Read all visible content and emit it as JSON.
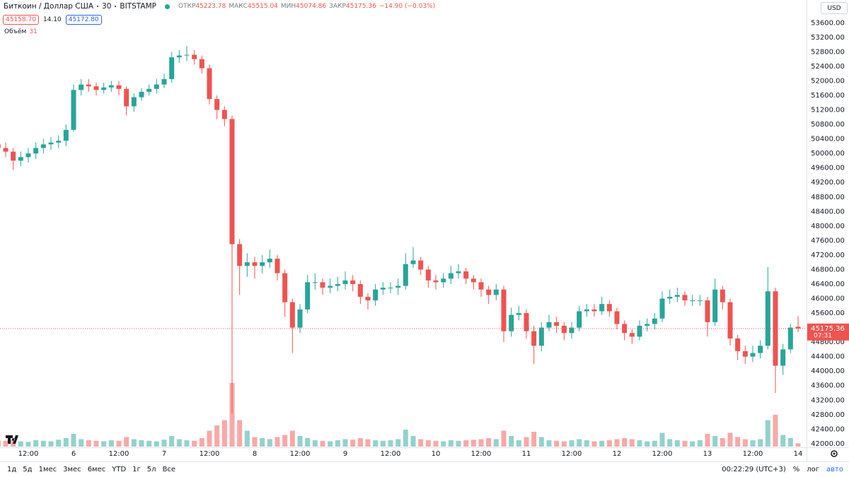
{
  "header": {
    "symbol": "Биткоин / Доллар США",
    "interval": "30",
    "exchange": "BITSTAMP",
    "open_label": "ОТКР",
    "high_label": "МАКС",
    "low_label": "МИН",
    "close_label": "ЗАКР",
    "change": "−14.90 (−0.03%)",
    "bid": "45158.70",
    "spread": "14.10",
    "ask": "45172.80",
    "volume_label": "Объём",
    "currency": "USD",
    "countdown": "07:31"
  },
  "toolbar": {
    "ranges": [
      "1д",
      "5д",
      "1мес",
      "3мес",
      "6мес",
      "YTD",
      "1г",
      "5л",
      "Все"
    ],
    "clock": "00:22:29 (UTC+3)",
    "percent": "%",
    "log": "лог",
    "auto": "авто"
  },
  "chart_data": {
    "type": "candlestick",
    "up_color": "#26a69a",
    "down_color": "#ef5350",
    "grid": false,
    "categories": [
      null,
      null,
      null,
      null,
      "12:00",
      null,
      null,
      null,
      null,
      null,
      "6",
      null,
      null,
      null,
      null,
      null,
      "12:00",
      null,
      null,
      null,
      null,
      null,
      "7",
      null,
      null,
      null,
      null,
      null,
      "12:00",
      null,
      null,
      null,
      null,
      null,
      "8",
      null,
      null,
      null,
      null,
      null,
      "12:00",
      null,
      null,
      null,
      null,
      null,
      "9",
      null,
      null,
      null,
      null,
      null,
      "12:00",
      null,
      null,
      null,
      null,
      null,
      "10",
      null,
      null,
      null,
      null,
      null,
      "12:00",
      null,
      null,
      null,
      null,
      null,
      "11",
      null,
      null,
      null,
      null,
      null,
      "12:00",
      null,
      null,
      null,
      null,
      null,
      "12",
      null,
      null,
      null,
      null,
      null,
      "12:00",
      null,
      null,
      null,
      null,
      null,
      "13",
      null,
      null,
      null,
      null,
      null,
      "12:00",
      null,
      null,
      null,
      null,
      null,
      "14"
    ],
    "open": [
      50250,
      50150,
      50050,
      49800,
      49900,
      50000,
      50150,
      50250,
      50300,
      50350,
      50650,
      51750,
      51900,
      51850,
      51750,
      51820,
      51880,
      51780,
      51300,
      51550,
      51700,
      51780,
      51900,
      52050,
      52650,
      52700,
      52720,
      52600,
      52350,
      51500,
      51200,
      50950,
      47500,
      46900,
      47000,
      46900,
      47000,
      47100,
      46700,
      45900,
      45200,
      45700,
      46450,
      46450,
      46300,
      46350,
      46400,
      46500,
      46400,
      46050,
      45950,
      46250,
      46300,
      46300,
      46350,
      46950,
      47050,
      46800,
      46500,
      46450,
      46550,
      46700,
      46750,
      46550,
      46450,
      46250,
      46100,
      46250,
      45100,
      45550,
      45600,
      45100,
      44700,
      45200,
      45350,
      45250,
      45050,
      45200,
      45650,
      45700,
      45650,
      45850,
      45650,
      45300,
      45050,
      44950,
      45250,
      45300,
      45450,
      46000,
      46050,
      46100,
      45950,
      45950,
      45950,
      45350,
      46250,
      45900,
      44900,
      44550,
      44400,
      44500,
      44700,
      46200,
      44150,
      44600,
      45223.78
    ],
    "high": [
      50400,
      50300,
      50150,
      50050,
      50150,
      50300,
      50400,
      50450,
      50500,
      50800,
      51900,
      52050,
      52050,
      51950,
      51950,
      52000,
      52000,
      51850,
      51650,
      51800,
      51900,
      52050,
      52200,
      52800,
      52850,
      52960,
      52850,
      52700,
      52450,
      51600,
      51300,
      51050,
      47640,
      47250,
      47150,
      47200,
      47350,
      47200,
      46800,
      46000,
      45850,
      46650,
      46700,
      46550,
      46550,
      46600,
      46750,
      46650,
      46500,
      46150,
      46400,
      46450,
      46450,
      46550,
      47250,
      47420,
      47150,
      46900,
      46650,
      46700,
      46900,
      46950,
      46850,
      46650,
      46550,
      46350,
      46400,
      46350,
      45750,
      45800,
      45700,
      45250,
      45350,
      45550,
      45500,
      45350,
      45350,
      45800,
      45850,
      45850,
      46050,
      45950,
      45750,
      45400,
      45150,
      45400,
      45450,
      45600,
      46200,
      46250,
      46300,
      46200,
      46100,
      46100,
      46050,
      46550,
      46350,
      46000,
      45000,
      44700,
      44700,
      44850,
      46870,
      46300,
      44750,
      45300,
      45515.04
    ],
    "low": [
      50000,
      49900,
      49550,
      49650,
      49750,
      49850,
      50000,
      50100,
      50150,
      50200,
      50600,
      51600,
      51700,
      51600,
      51650,
      51700,
      51600,
      51050,
      51150,
      51450,
      51600,
      51650,
      51800,
      51950,
      52500,
      52550,
      52450,
      52200,
      51350,
      50950,
      50750,
      42830,
      46100,
      46600,
      46550,
      46700,
      46850,
      46500,
      45500,
      44500,
      45050,
      45600,
      46250,
      46100,
      46150,
      46200,
      46250,
      46200,
      45850,
      45700,
      45800,
      46100,
      46150,
      46100,
      46250,
      46850,
      46650,
      46300,
      46250,
      46300,
      46400,
      46550,
      46400,
      46250,
      46050,
      45850,
      45950,
      44800,
      44950,
      45400,
      44900,
      44200,
      44550,
      45100,
      45050,
      44850,
      44900,
      45100,
      45500,
      45500,
      45550,
      45500,
      45150,
      44850,
      44750,
      44850,
      45100,
      45150,
      45350,
      45850,
      45900,
      45800,
      45800,
      45800,
      44950,
      45250,
      45700,
      44700,
      44300,
      44200,
      44250,
      44350,
      44600,
      43400,
      43900,
      44500,
      45074.86
    ],
    "close": [
      50150,
      50050,
      49800,
      49900,
      50000,
      50150,
      50250,
      50300,
      50350,
      50650,
      51750,
      51900,
      51850,
      51750,
      51820,
      51880,
      51780,
      51300,
      51550,
      51700,
      51780,
      51900,
      52050,
      52650,
      52700,
      52720,
      52600,
      52350,
      51500,
      51200,
      50950,
      47500,
      46900,
      47000,
      46900,
      47000,
      47100,
      46700,
      45900,
      45200,
      45700,
      46450,
      46450,
      46300,
      46350,
      46400,
      46500,
      46400,
      46050,
      45950,
      46250,
      46300,
      46300,
      46350,
      46950,
      47050,
      46800,
      46500,
      46450,
      46550,
      46700,
      46750,
      46550,
      46450,
      46250,
      46100,
      46250,
      45100,
      45550,
      45600,
      45100,
      44700,
      45200,
      45350,
      45250,
      45050,
      45200,
      45650,
      45700,
      45650,
      45850,
      45650,
      45300,
      45050,
      44950,
      45250,
      45300,
      45450,
      46000,
      46050,
      46100,
      45950,
      45950,
      45950,
      45350,
      46250,
      45900,
      44900,
      44550,
      44400,
      44500,
      44700,
      46200,
      44150,
      44600,
      45200,
      45175.36
    ],
    "volume": [
      60,
      55,
      70,
      50,
      45,
      60,
      55,
      50,
      65,
      80,
      120,
      70,
      60,
      55,
      50,
      60,
      55,
      90,
      70,
      60,
      55,
      50,
      65,
      100,
      70,
      60,
      55,
      80,
      150,
      200,
      250,
      600,
      250,
      150,
      90,
      80,
      70,
      90,
      110,
      150,
      100,
      80,
      60,
      55,
      50,
      60,
      70,
      65,
      80,
      70,
      60,
      55,
      60,
      70,
      160,
      100,
      70,
      60,
      55,
      50,
      60,
      55,
      60,
      65,
      70,
      80,
      70,
      150,
      100,
      60,
      90,
      140,
      90,
      60,
      55,
      50,
      60,
      70,
      60,
      50,
      55,
      60,
      70,
      80,
      70,
      60,
      50,
      55,
      130,
      70,
      60,
      55,
      50,
      60,
      120,
      100,
      80,
      130,
      90,
      70,
      60,
      70,
      250,
      300,
      110,
      80,
      31
    ],
    "ylim": [
      41900,
      54230
    ],
    "yticks": [
      {
        "value": 42000,
        "label": "42000.00"
      },
      {
        "value": 42400,
        "label": "42400.00"
      },
      {
        "value": 42800,
        "label": "42800.00"
      },
      {
        "value": 43200,
        "label": "43200.00"
      },
      {
        "value": 43600,
        "label": "43600.00"
      },
      {
        "value": 44000,
        "label": "44000.00"
      },
      {
        "value": 44400,
        "label": "44400.00"
      },
      {
        "value": 44800,
        "label": "44800.00"
      },
      {
        "value": 45200,
        "label": "45200.00"
      },
      {
        "value": 45600,
        "label": "45600.00"
      },
      {
        "value": 46000,
        "label": "46000.00"
      },
      {
        "value": 46400,
        "label": "46400.00"
      },
      {
        "value": 46800,
        "label": "46800.00"
      },
      {
        "value": 47200,
        "label": "47200.00"
      },
      {
        "value": 47600,
        "label": "47600.00"
      },
      {
        "value": 48000,
        "label": "48000.00"
      },
      {
        "value": 48400,
        "label": "48400.00"
      },
      {
        "value": 48800,
        "label": "48800.00"
      },
      {
        "value": 49200,
        "label": "49200.00"
      },
      {
        "value": 49600,
        "label": "49600.00"
      },
      {
        "value": 50000,
        "label": "50000.00"
      },
      {
        "value": 50400,
        "label": "50400.00"
      },
      {
        "value": 50800,
        "label": "50800.00"
      },
      {
        "value": 51200,
        "label": "51200.00"
      },
      {
        "value": 51600,
        "label": "51600.00"
      },
      {
        "value": 52000,
        "label": "52000.00"
      },
      {
        "value": 52400,
        "label": "52400.00"
      },
      {
        "value": 52800,
        "label": "52800.00"
      },
      {
        "value": 53200,
        "label": "53200.00"
      },
      {
        "value": 53600,
        "label": "53600.00"
      }
    ]
  }
}
